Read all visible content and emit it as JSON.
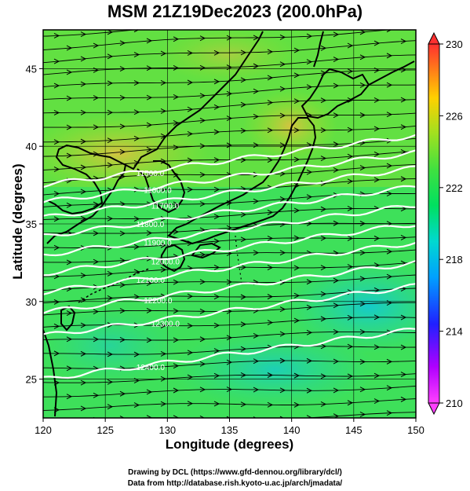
{
  "title": "MSM 21Z19Dec2023 (200.0hPa)",
  "x_axis": {
    "label": "Longitude (degrees)",
    "ticks": [
      "120",
      "125",
      "130",
      "135",
      "140",
      "145",
      "150"
    ],
    "range": [
      120,
      150
    ]
  },
  "y_axis": {
    "label": "Latitude  (degrees)",
    "ticks": [
      "25",
      "30",
      "35",
      "40",
      "45"
    ],
    "range": [
      22.5,
      47.5
    ]
  },
  "colorbar": {
    "ticks": [
      "230",
      "226",
      "222",
      "218",
      "214",
      "210"
    ],
    "range": [
      210,
      230
    ]
  },
  "contours": [
    {
      "label": "11500.0",
      "lat_west": 37.5
    },
    {
      "label": "11600.0",
      "lat_west": 36.4
    },
    {
      "label": "11700.0",
      "lat_west": 35.4
    },
    {
      "label": "11800.0",
      "lat_west": 34.2
    },
    {
      "label": "11900.0",
      "lat_west": 33.0
    },
    {
      "label": "12000.0",
      "lat_west": 31.8
    },
    {
      "label": "12100.0",
      "lat_west": 30.6
    },
    {
      "label": "12200.0",
      "lat_west": 29.3
    },
    {
      "label": "12300.0",
      "lat_west": 27.8
    },
    {
      "label": "12400.0",
      "lat_west": 25.0
    }
  ],
  "credits": {
    "line1": "Drawing by DCL (https://www.gfd-dennou.org/library/dcl/)",
    "line2": "Data from http://database.rish.kyoto-u.ac.jp/arch/jmadata/"
  },
  "colors": {
    "field_main": "#3ee05a",
    "field_warm": "#b0e020",
    "field_cool": "#22d6a0"
  }
}
